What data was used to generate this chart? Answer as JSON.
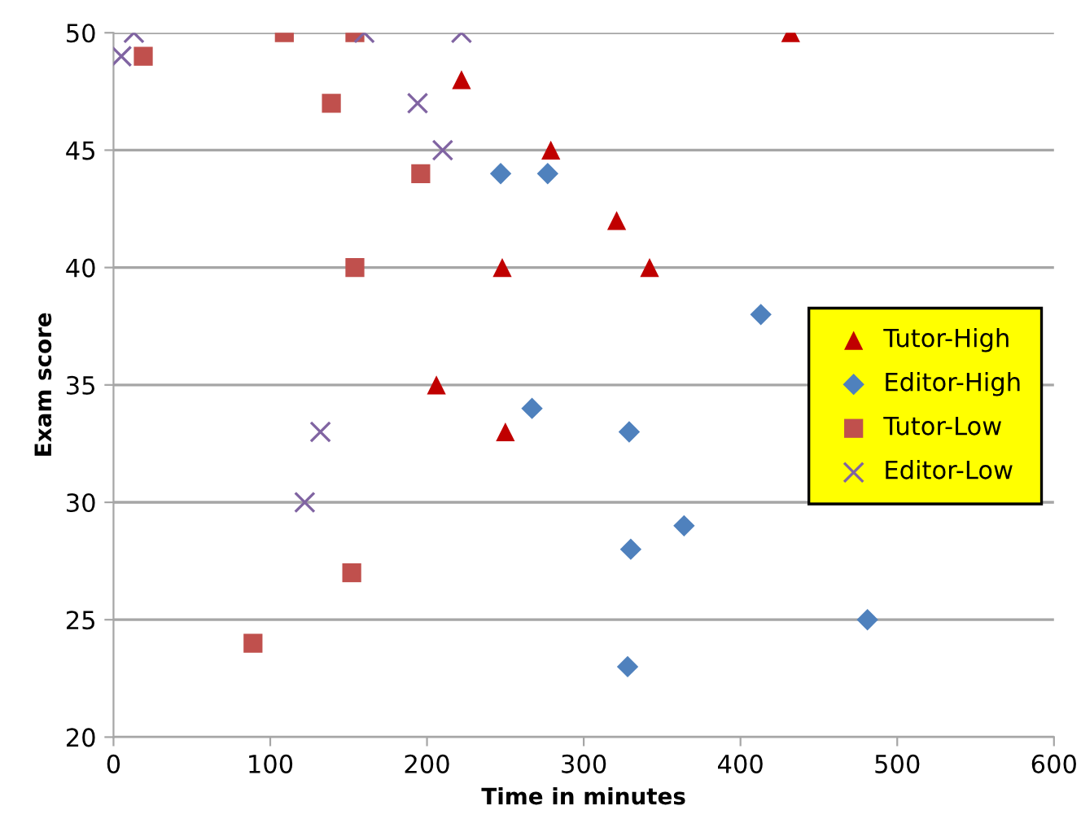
{
  "chart_data": {
    "type": "scatter",
    "xlabel": "Time in minutes",
    "ylabel": "Exam score",
    "xlim": [
      0,
      600
    ],
    "xticks": [
      0,
      100,
      200,
      300,
      400,
      500,
      600
    ],
    "ylim": [
      20,
      50
    ],
    "yticks": [
      20,
      25,
      30,
      35,
      40,
      45,
      50
    ],
    "grid": "y",
    "legend": "right",
    "series": [
      {
        "name": "Tutor-High",
        "color": "#c00000",
        "marker": "triangle",
        "x": [
          432,
          222,
          279,
          321,
          248,
          342,
          206,
          250
        ],
        "values": [
          50,
          48,
          45,
          42,
          40,
          40,
          35,
          33
        ]
      },
      {
        "name": "Editor-High",
        "color": "#4f81bd",
        "marker": "diamond",
        "x": [
          247,
          277,
          413,
          267,
          329,
          330,
          364,
          481,
          328
        ],
        "values": [
          44,
          44,
          38,
          34,
          33,
          28,
          29,
          25,
          23
        ]
      },
      {
        "name": "Tutor-Low",
        "color": "#c0504d",
        "marker": "square",
        "x": [
          19,
          109,
          154,
          139,
          196,
          154,
          152,
          89
        ],
        "values": [
          49,
          50,
          50,
          47,
          44,
          40,
          27,
          24
        ]
      },
      {
        "name": "Editor-Low",
        "color": "#8064a2",
        "marker": "cross",
        "x": [
          5,
          13,
          160,
          222,
          194,
          210,
          132,
          122
        ],
        "values": [
          49,
          50,
          50,
          50,
          47,
          45,
          33,
          30
        ]
      }
    ]
  }
}
